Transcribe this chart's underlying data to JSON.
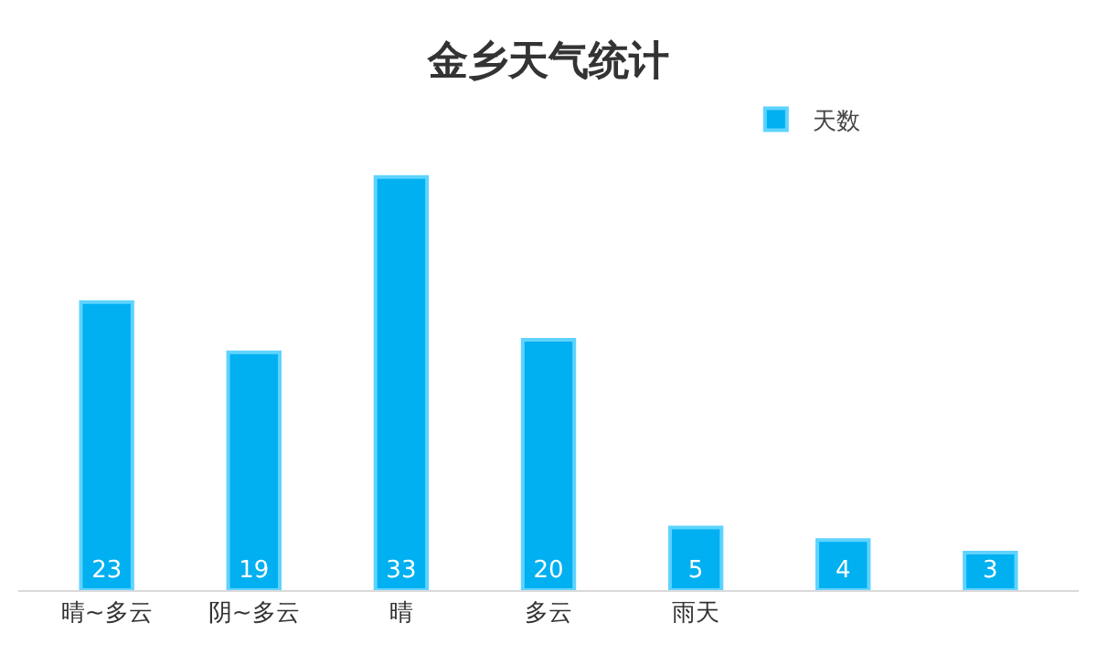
{
  "chart_data": {
    "type": "bar",
    "title": "金乡天气统计",
    "categories": [
      "晴~多云",
      "阴~多云",
      "晴",
      "多云",
      "雨天",
      null,
      null
    ],
    "series": [
      {
        "name": "天数",
        "color": "#00b0f0",
        "values": [
          23,
          19,
          33,
          20,
          5,
          4,
          3
        ]
      }
    ],
    "data_labels": true,
    "legend": "top right"
  }
}
